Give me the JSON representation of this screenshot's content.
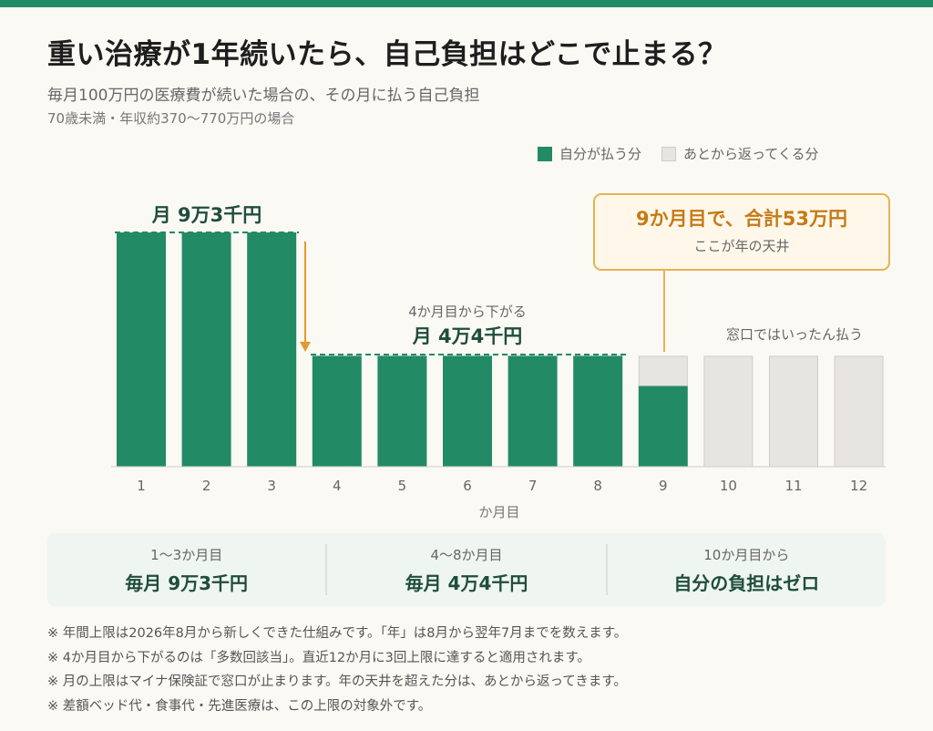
{
  "header": {
    "title": "重い治療が1年続いたら、自己負担はどこで止まる？",
    "subtitle": "毎月100万円の医療費が続いた場合の、その月に払う自己負担",
    "condition": "70歳未満・年収約370〜770万円の場合"
  },
  "legend": {
    "own": "自分が払う分",
    "refund": "あとから返ってくる分"
  },
  "colors": {
    "own": "#238A66",
    "refund": "#E6E5E0",
    "accent": "#E39A2D"
  },
  "annotations": {
    "early_level": "月 9万3千円",
    "drop_note": "4か月目から下がる",
    "mid_level": "月 4万4千円",
    "cap_title": "9か月目で、合計53万円",
    "cap_sub": "ここが年の天井",
    "window_note": "窓口ではいったん払う"
  },
  "chart_data": {
    "type": "bar",
    "x": [
      1,
      2,
      3,
      4,
      5,
      6,
      7,
      8,
      9,
      10,
      11,
      12
    ],
    "xlabel": "か月目",
    "ylabel": "",
    "series": [
      {
        "name": "自分が払う分",
        "values": [
          9.3,
          9.3,
          9.3,
          4.4,
          4.4,
          4.4,
          4.4,
          4.4,
          3.2,
          0,
          0,
          0
        ]
      },
      {
        "name": "あとから返ってくる分",
        "values": [
          0,
          0,
          0,
          0,
          0,
          0,
          0,
          0,
          1.2,
          4.4,
          4.4,
          4.4
        ]
      }
    ]
  },
  "summary": [
    {
      "label": "1〜3か月目",
      "value": "毎月 9万3千円"
    },
    {
      "label": "4〜8か月目",
      "value": "毎月 4万4千円"
    },
    {
      "label": "10か月目から",
      "value": "自分の負担はゼロ"
    }
  ],
  "notes": [
    "※ 年間上限は2026年8月から新しくできた仕組みです。「年」は8月から翌年7月までを数えます。",
    "※ 4か月目から下がるのは「多数回該当」。直近12か月に3回上限に達すると適用されます。",
    "※ 月の上限はマイナ保険証で窓口が止まります。年の天井を超えた分は、あとから返ってきます。",
    "※ 差額ベッド代・食事代・先進医療は、この上限の対象外です。"
  ]
}
